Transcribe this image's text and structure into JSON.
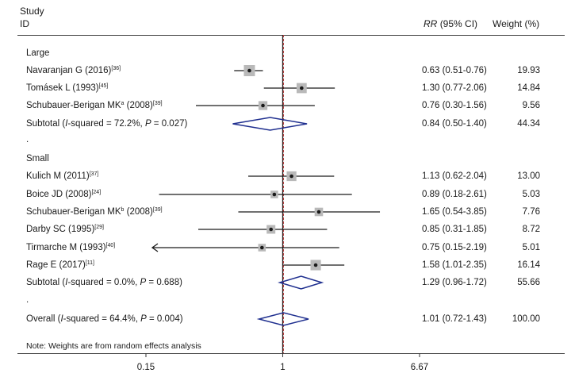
{
  "header": {
    "study_label": "Study",
    "id_label": "ID",
    "rr_label": "RR",
    "ci_label": "(95% CI)",
    "weight_label": "Weight (%)"
  },
  "groups": [
    {
      "name": "Large"
    },
    {
      "name": "Small"
    }
  ],
  "rows": [
    {
      "kind": "group",
      "group": 0,
      "label": "Large"
    },
    {
      "kind": "study",
      "name": "Navaranjan G (2016)",
      "ref": "[36]",
      "rr": 0.63,
      "lo": 0.51,
      "hi": 0.76,
      "rr_text": "0.63 (0.51-0.76)",
      "weight": 19.93,
      "weight_text": "19.93"
    },
    {
      "kind": "study",
      "name": "Tomásek L (1993)",
      "ref": "[45]",
      "rr": 1.3,
      "lo": 0.77,
      "hi": 2.06,
      "rr_text": "1.30 (0.77-2.06)",
      "weight": 14.84,
      "weight_text": "14.84"
    },
    {
      "kind": "study",
      "name": "Schubauer-Berigan MK",
      "mark": "a",
      "ref_text": " (2008)",
      "ref": "[39]",
      "rr": 0.76,
      "lo": 0.3,
      "hi": 1.56,
      "rr_text": "0.76 (0.30-1.56)",
      "weight": 9.56,
      "weight_text": "9.56"
    },
    {
      "kind": "subtotal",
      "prefix": "Subtotal (",
      "stat": "I",
      "stat_rest": "-squared = 72.2%, ",
      "p": "P",
      "p_rest": " = 0.027)",
      "rr": 0.84,
      "lo": 0.5,
      "hi": 1.4,
      "rr_text": "0.84 (0.50-1.40)",
      "weight_text": "44.34"
    },
    {
      "kind": "dot",
      "label": "."
    },
    {
      "kind": "group",
      "group": 1,
      "label": "Small"
    },
    {
      "kind": "study",
      "name": "Kulich M (2011)",
      "ref": "[37]",
      "rr": 1.13,
      "lo": 0.62,
      "hi": 2.04,
      "rr_text": "1.13 (0.62-2.04)",
      "weight": 13.0,
      "weight_text": "13.00"
    },
    {
      "kind": "study",
      "name": "Boice JD (2008)",
      "ref": "[24]",
      "rr": 0.89,
      "lo": 0.18,
      "hi": 2.61,
      "rr_text": "0.89 (0.18-2.61)",
      "weight": 5.03,
      "weight_text": "5.03"
    },
    {
      "kind": "study",
      "name": "Schubauer-Berigan MK",
      "mark": "b",
      "ref_text": " (2008)",
      "ref": "[39]",
      "rr": 1.65,
      "lo": 0.54,
      "hi": 3.85,
      "rr_text": "1.65 (0.54-3.85)",
      "weight": 7.76,
      "weight_text": "7.76"
    },
    {
      "kind": "study",
      "name": "Darby SC (1995)",
      "ref": "[29]",
      "rr": 0.85,
      "lo": 0.31,
      "hi": 1.85,
      "rr_text": "0.85 (0.31-1.85)",
      "weight": 8.72,
      "weight_text": "8.72"
    },
    {
      "kind": "study",
      "name": "Tirmarche M (1993)",
      "ref": "[40]",
      "rr": 0.75,
      "lo": 0.15,
      "hi": 2.19,
      "rr_text": "0.75 (0.15-2.19)",
      "weight": 5.01,
      "weight_text": "5.01",
      "arrow_left": true
    },
    {
      "kind": "study",
      "name": "Rage E (2017)",
      "ref": "[11]",
      "rr": 1.58,
      "lo": 1.01,
      "hi": 2.35,
      "rr_text": "1.58 (1.01-2.35)",
      "weight": 16.14,
      "weight_text": "16.14"
    },
    {
      "kind": "subtotal",
      "prefix": "Subtotal (",
      "stat": "I",
      "stat_rest": "-squared = 0.0%, ",
      "p": "P",
      "p_rest": " = 0.688)",
      "rr": 1.29,
      "lo": 0.96,
      "hi": 1.72,
      "rr_text": "1.29 (0.96-1.72)",
      "weight_text": "55.66"
    },
    {
      "kind": "dot",
      "label": "."
    },
    {
      "kind": "overall",
      "prefix": "Overall (",
      "stat": "I",
      "stat_rest": "-squared = 64.4%, ",
      "p": "P",
      "p_rest": " = 0.004)",
      "rr": 1.01,
      "lo": 0.72,
      "hi": 1.43,
      "rr_text": "1.01 (0.72-1.43)",
      "weight_text": "100.00"
    }
  ],
  "note": "Note: Weights are from random effects analysis",
  "chart_data": {
    "type": "forest",
    "scale": "log",
    "xlim": [
      0.15,
      6.67
    ],
    "xticks": [
      0.15,
      1,
      6.67
    ],
    "xtick_labels": [
      "0.15",
      "1",
      "6.67"
    ],
    "null_line": 1,
    "overall_line": 1.01,
    "colors": {
      "diamond": "#1f2f8f",
      "overall_line": "#b03a3a",
      "box": "#b9b9b9",
      "line": "#1a1a1a"
    }
  }
}
